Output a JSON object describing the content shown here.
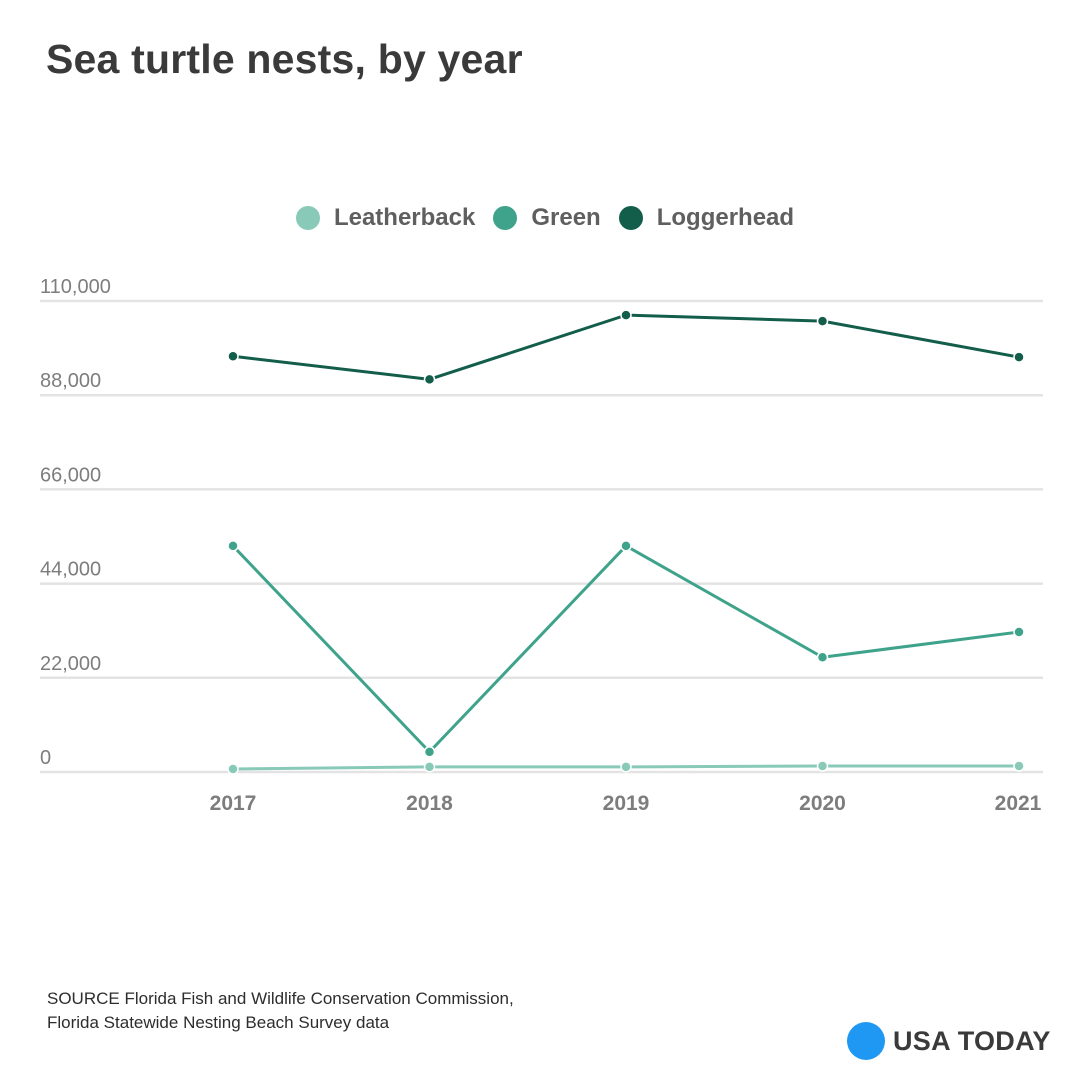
{
  "title": "Sea turtle nests, by year",
  "legend": [
    {
      "label": "Leatherback",
      "color": "#88c9b8"
    },
    {
      "label": "Green",
      "color": "#3fa38c"
    },
    {
      "label": "Loggerhead",
      "color": "#135d4b"
    }
  ],
  "source": {
    "line1": "SOURCE Florida Fish and Wildlife Conservation Commission,",
    "line2": "Florida Statewide Nesting Beach Survey data"
  },
  "logo": {
    "text": "USA TODAY",
    "color": "#1f98f3"
  },
  "chart_data": {
    "type": "line",
    "title": "Sea turtle nests, by year",
    "xlabel": "",
    "ylabel": "",
    "x": [
      "2017",
      "2018",
      "2019",
      "2020",
      "2021"
    ],
    "ylim": [
      0,
      110000
    ],
    "yticks": [
      0,
      22000,
      44000,
      66000,
      88000,
      110000
    ],
    "ytick_labels": [
      "0",
      "22,000",
      "44,000",
      "66,000",
      "88,000",
      "110,000"
    ],
    "grid": true,
    "legend_position": "top-center",
    "series": [
      {
        "name": "Leatherback",
        "color": "#88c9b8",
        "values": [
          700,
          1200,
          1200,
          1400,
          1400
        ]
      },
      {
        "name": "Green",
        "color": "#3fa38c",
        "values": [
          52800,
          4700,
          52800,
          26800,
          32700
        ]
      },
      {
        "name": "Loggerhead",
        "color": "#135d4b",
        "values": [
          97100,
          91700,
          106700,
          105300,
          96900
        ]
      }
    ]
  }
}
